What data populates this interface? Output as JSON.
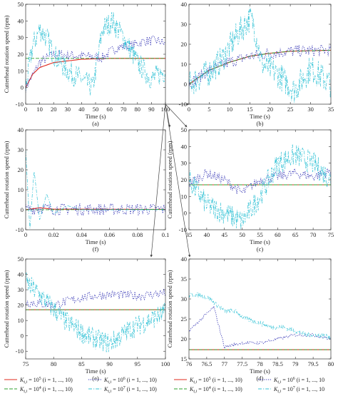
{
  "figure": {
    "panels": [
      {
        "id": "a",
        "label": "(a)",
        "xlabel": "Time (s)",
        "ylabel": "Cutterhead rotation speed (rpm)",
        "xlim": [
          0,
          100
        ],
        "ylim": [
          -10,
          50
        ],
        "xticks": [
          0,
          10,
          20,
          30,
          40,
          50,
          60,
          70,
          80,
          90,
          100
        ],
        "yticks": [
          -10,
          0,
          10,
          20,
          30,
          40,
          50
        ]
      },
      {
        "id": "b",
        "label": "(b)",
        "xlabel": "Time (s)",
        "ylabel": "",
        "xlim": [
          0,
          35
        ],
        "ylim": [
          -10,
          40
        ],
        "xticks": [
          0,
          5,
          10,
          15,
          20,
          25,
          30,
          35
        ],
        "yticks": [
          -10,
          0,
          10,
          20,
          30,
          40
        ]
      },
      {
        "id": "f",
        "label": "(f)",
        "xlabel": "Time (s)",
        "ylabel": "Cutterhead rotation speed (rpm)",
        "xlim": [
          0,
          0.1
        ],
        "ylim": [
          -10,
          40
        ],
        "xticks": [
          "0",
          "0.02",
          "0.04",
          "0.06",
          "0.08",
          "0.1"
        ],
        "yticks": [
          -10,
          0,
          10,
          20,
          30,
          40
        ]
      },
      {
        "id": "c",
        "label": "(c)",
        "xlabel": "Time (s)",
        "ylabel": "Cutterhead rotation speed (rpm)",
        "xlim": [
          35,
          75
        ],
        "ylim": [
          -10,
          50
        ],
        "xticks": [
          35,
          40,
          45,
          50,
          55,
          60,
          65,
          70,
          75
        ],
        "yticks": [
          -10,
          0,
          10,
          20,
          30,
          40,
          50
        ]
      },
      {
        "id": "e",
        "label": "(e)",
        "xlabel": "Time (s)",
        "ylabel": "Cutterhead rotation speed (rpm)",
        "xlim": [
          75,
          100
        ],
        "ylim": [
          -15,
          50
        ],
        "xticks": [
          75,
          80,
          85,
          90,
          95,
          100
        ],
        "yticks": [
          -10,
          0,
          10,
          20,
          30,
          40,
          50
        ]
      },
      {
        "id": "d",
        "label": "(d)",
        "xlabel": "Time (s)",
        "ylabel": "Cutterhead rotation speed (rpm)",
        "xlim": [
          76,
          80
        ],
        "ylim": [
          15,
          40
        ],
        "xticks": [
          "76",
          "76.5",
          "77",
          "77.5",
          "78",
          "78.5",
          "79",
          "79.5",
          "80"
        ],
        "yticks": [
          15,
          20,
          25,
          30,
          35,
          40
        ]
      }
    ],
    "legend": [
      {
        "base": "K",
        "sub": "t,i",
        "eq": " = 10",
        "exp": "5",
        "cond": " (i = 1, ..., 10)",
        "color": "#e0281e",
        "style": "solid"
      },
      {
        "base": "K",
        "sub": "t,i",
        "eq": " = 10",
        "exp": "4",
        "cond": " (i = 1, ..., 10)",
        "color": "#2ca02c",
        "style": "dashed"
      },
      {
        "base": "K",
        "sub": "t,i",
        "eq": " = 10",
        "exp": "6",
        "cond": " (i = 1, ..., 10)",
        "color": "#3232b4",
        "style": "dotted"
      },
      {
        "base": "K",
        "sub": "t,i",
        "eq": " = 10",
        "exp": "7",
        "cond": " (i = 1, ..., 10)",
        "color": "#36c3d6",
        "style": "dashdot"
      }
    ],
    "right_legend_cond": " (i = 1, ..., 10"
  },
  "chart_data": [
    {
      "type": "line",
      "panel": "a",
      "title": "",
      "xlabel": "Time (s)",
      "ylabel": "Cutterhead rotation speed (rpm)",
      "series": [
        {
          "name": "K_t,i = 10^5",
          "points": [
            [
              0,
              0
            ],
            [
              5,
              8
            ],
            [
              10,
              12
            ],
            [
              20,
              15
            ],
            [
              40,
              17
            ],
            [
              60,
              17.5
            ],
            [
              100,
              17.5
            ]
          ]
        },
        {
          "name": "K_t,i = 10^4",
          "points": [
            [
              0,
              17.5
            ],
            [
              100,
              17.5
            ]
          ]
        },
        {
          "name": "K_t,i = 10^6",
          "points": [
            [
              0,
              0
            ],
            [
              10,
              15
            ],
            [
              20,
              20
            ],
            [
              40,
              19
            ],
            [
              55,
              18
            ],
            [
              65,
              24
            ],
            [
              75,
              25
            ],
            [
              85,
              28
            ],
            [
              95,
              28
            ],
            [
              100,
              26
            ]
          ]
        },
        {
          "name": "K_t,i = 10^7",
          "points": [
            [
              0,
              0
            ],
            [
              5,
              25
            ],
            [
              10,
              35
            ],
            [
              15,
              30
            ],
            [
              20,
              20
            ],
            [
              30,
              10
            ],
            [
              40,
              5
            ],
            [
              48,
              0
            ],
            [
              55,
              35
            ],
            [
              62,
              40
            ],
            [
              70,
              30
            ],
            [
              80,
              15
            ],
            [
              90,
              5
            ],
            [
              100,
              10
            ]
          ]
        }
      ]
    },
    {
      "type": "line",
      "panel": "b",
      "title": "",
      "xlabel": "Time (s)",
      "ylabel": "",
      "series": [
        {
          "name": "K_t,i = 10^5",
          "points": [
            [
              0,
              0
            ],
            [
              5,
              7
            ],
            [
              10,
              11
            ],
            [
              15,
              14
            ],
            [
              20,
              15.5
            ],
            [
              25,
              16.5
            ],
            [
              35,
              17
            ]
          ]
        },
        {
          "name": "K_t,i = 10^4",
          "points": [
            [
              0,
              0
            ],
            [
              5,
              7
            ],
            [
              10,
              11
            ],
            [
              15,
              14
            ],
            [
              20,
              15.5
            ],
            [
              25,
              16.5
            ],
            [
              35,
              17
            ]
          ]
        },
        {
          "name": "K_t,i = 10^6",
          "points": [
            [
              0,
              0
            ],
            [
              5,
              7
            ],
            [
              10,
              11
            ],
            [
              15,
              14
            ],
            [
              20,
              15.5
            ],
            [
              25,
              16.5
            ],
            [
              35,
              17
            ]
          ]
        },
        {
          "name": "K_t,i = 10^7",
          "points": [
            [
              0,
              0
            ],
            [
              5,
              6
            ],
            [
              8,
              12
            ],
            [
              12,
              25
            ],
            [
              15,
              33
            ],
            [
              16,
              30
            ],
            [
              18,
              10
            ],
            [
              22,
              5
            ],
            [
              26,
              -3
            ],
            [
              30,
              8
            ],
            [
              35,
              0
            ]
          ]
        }
      ]
    },
    {
      "type": "line",
      "panel": "f",
      "title": "",
      "xlabel": "Time (s)",
      "ylabel": "Cutterhead rotation speed (rpm)",
      "series": [
        {
          "name": "K_t,i = 10^5",
          "points": [
            [
              0,
              0
            ],
            [
              0.005,
              0.5
            ],
            [
              0.01,
              1
            ],
            [
              0.02,
              0.3
            ],
            [
              0.1,
              0.2
            ]
          ]
        },
        {
          "name": "K_t,i = 10^4",
          "points": [
            [
              0,
              0
            ],
            [
              0.1,
              0.2
            ]
          ]
        },
        {
          "name": "K_t,i = 10^6",
          "points": [
            [
              0,
              0
            ],
            [
              0.01,
              1
            ],
            [
              0.02,
              0.3
            ],
            [
              0.1,
              0.2
            ]
          ]
        },
        {
          "name": "K_t,i = 10^7",
          "points": [
            [
              0,
              30
            ],
            [
              0.003,
              -10
            ],
            [
              0.006,
              20
            ],
            [
              0.01,
              -5
            ],
            [
              0.015,
              8
            ],
            [
              0.02,
              -2
            ],
            [
              0.03,
              2
            ],
            [
              0.04,
              0
            ],
            [
              0.1,
              0
            ]
          ]
        }
      ]
    },
    {
      "type": "line",
      "panel": "c",
      "title": "",
      "xlabel": "Time (s)",
      "ylabel": "Cutterhead rotation speed (rpm)",
      "series": [
        {
          "name": "K_t,i = 10^5",
          "points": [
            [
              35,
              17
            ],
            [
              75,
              17
            ]
          ]
        },
        {
          "name": "K_t,i = 10^4",
          "points": [
            [
              35,
              17
            ],
            [
              75,
              17
            ]
          ]
        },
        {
          "name": "K_t,i = 10^6",
          "points": [
            [
              35,
              18
            ],
            [
              40,
              24
            ],
            [
              45,
              20
            ],
            [
              50,
              12
            ],
            [
              55,
              20
            ],
            [
              60,
              22
            ],
            [
              65,
              24
            ],
            [
              70,
              22
            ],
            [
              75,
              25
            ]
          ]
        },
        {
          "name": "K_t,i = 10^7",
          "points": [
            [
              35,
              20
            ],
            [
              40,
              5
            ],
            [
              45,
              0
            ],
            [
              50,
              -5
            ],
            [
              55,
              10
            ],
            [
              60,
              30
            ],
            [
              65,
              35
            ],
            [
              70,
              30
            ],
            [
              75,
              20
            ]
          ]
        }
      ]
    },
    {
      "type": "line",
      "panel": "e",
      "title": "",
      "xlabel": "Time (s)",
      "ylabel": "Cutterhead rotation speed (rpm)",
      "series": [
        {
          "name": "K_t,i = 10^5",
          "points": [
            [
              75,
              17
            ],
            [
              100,
              17
            ]
          ]
        },
        {
          "name": "K_t,i = 10^4",
          "points": [
            [
              75,
              17
            ],
            [
              100,
              17
            ]
          ]
        },
        {
          "name": "K_t,i = 10^6",
          "points": [
            [
              75,
              22
            ],
            [
              80,
              20
            ],
            [
              85,
              25
            ],
            [
              90,
              27
            ],
            [
              95,
              26
            ],
            [
              100,
              28
            ]
          ]
        },
        {
          "name": "K_t,i = 10^7",
          "points": [
            [
              75,
              35
            ],
            [
              78,
              25
            ],
            [
              82,
              10
            ],
            [
              86,
              0
            ],
            [
              90,
              -5
            ],
            [
              94,
              5
            ],
            [
              97,
              10
            ],
            [
              100,
              15
            ]
          ]
        }
      ]
    },
    {
      "type": "line",
      "panel": "d",
      "title": "",
      "xlabel": "Time (s)",
      "ylabel": "Cutterhead rotation speed (rpm)",
      "series": [
        {
          "name": "K_t,i = 10^5",
          "points": [
            [
              76,
              17.3
            ],
            [
              80,
              17.3
            ]
          ]
        },
        {
          "name": "K_t,i = 10^4",
          "points": [
            [
              76,
              17.3
            ],
            [
              80,
              17.3
            ]
          ]
        },
        {
          "name": "K_t,i = 10^6",
          "points": [
            [
              76,
              22
            ],
            [
              76.7,
              28
            ],
            [
              77,
              18
            ],
            [
              77.5,
              19
            ],
            [
              78,
              19
            ],
            [
              78.5,
              20
            ],
            [
              79,
              21
            ],
            [
              79.5,
              21
            ],
            [
              80,
              20
            ]
          ]
        },
        {
          "name": "K_t,i = 10^7",
          "points": [
            [
              76,
              31
            ],
            [
              76.3,
              31
            ],
            [
              76.6,
              30
            ],
            [
              77,
              27
            ],
            [
              77.3,
              27
            ],
            [
              77.6,
              25
            ],
            [
              78,
              24
            ],
            [
              78.3,
              23
            ],
            [
              78.6,
              23
            ],
            [
              79,
              22
            ],
            [
              79.3,
              21
            ],
            [
              79.6,
              21
            ],
            [
              80,
              20.5
            ]
          ]
        }
      ]
    }
  ]
}
